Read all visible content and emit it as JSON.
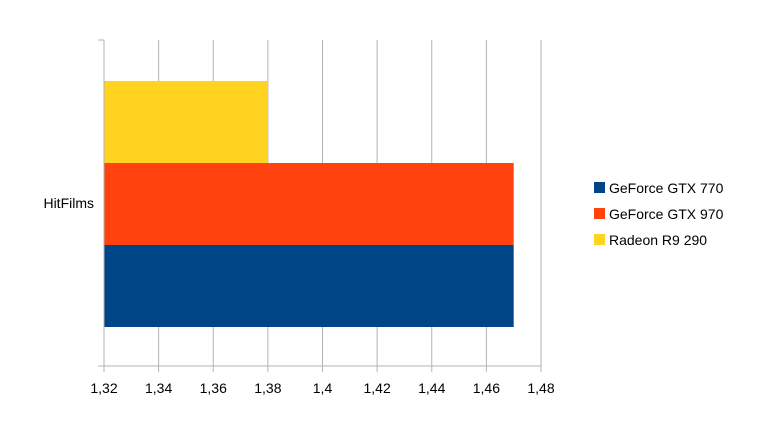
{
  "chart_data": {
    "type": "bar",
    "orientation": "horizontal",
    "categories": [
      "HitFilms"
    ],
    "series": [
      {
        "name": "GeForce GTX 770",
        "values": [
          1.47
        ],
        "color": "#004586"
      },
      {
        "name": "GeForce GTX 970",
        "values": [
          1.47
        ],
        "color": "#ff420e"
      },
      {
        "name": "Radeon R9 290",
        "values": [
          1.38
        ],
        "color": "#ffd320"
      }
    ],
    "xlim": [
      1.32,
      1.48
    ],
    "xticks": [
      "1,32",
      "1,34",
      "1,36",
      "1,38",
      "1,4",
      "1,42",
      "1,44",
      "1,46",
      "1,48"
    ],
    "title": "",
    "xlabel": "",
    "ylabel": "",
    "grid": true,
    "legend_position": "right"
  }
}
